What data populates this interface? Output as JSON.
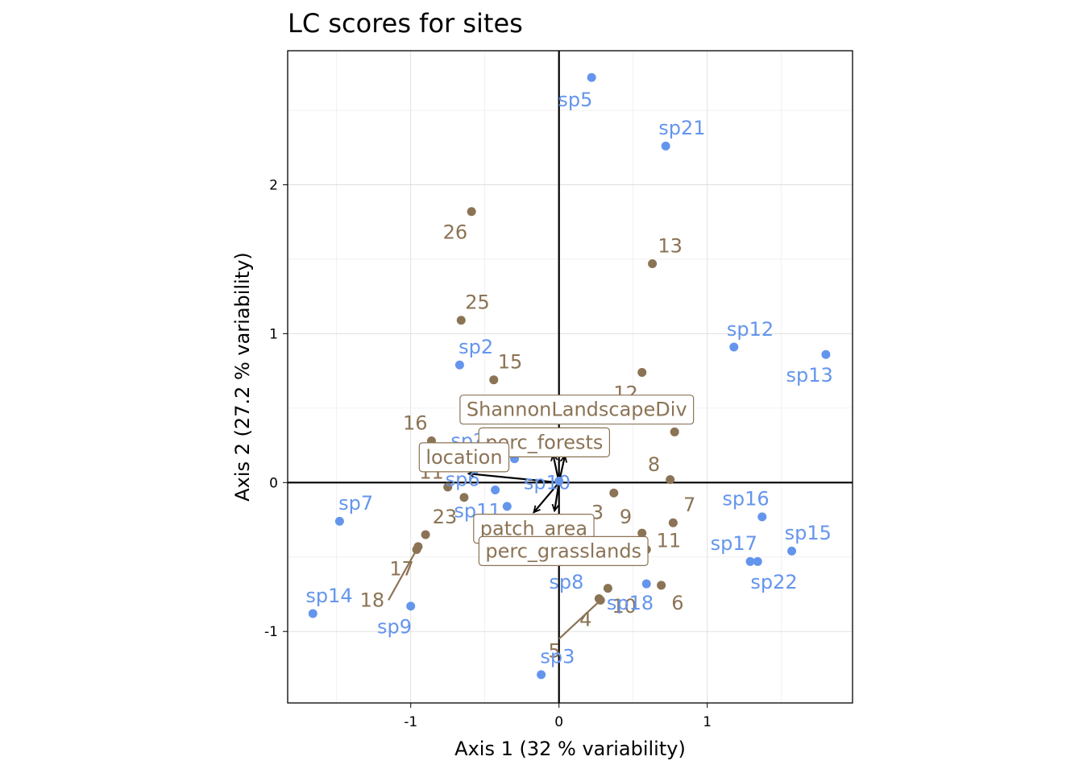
{
  "chart_data": {
    "type": "scatter",
    "title": "LC scores for sites",
    "xlabel": "Axis 1 (32 % variability)",
    "ylabel": "Axis 2 (27.2 % variability)",
    "xlim": [
      -1.83,
      1.98
    ],
    "ylim": [
      -1.48,
      2.9
    ],
    "x_ticks": [
      {
        "v": -1,
        "label": "-1"
      },
      {
        "v": 0,
        "label": "0"
      },
      {
        "v": 1,
        "label": "1"
      }
    ],
    "y_ticks": [
      {
        "v": -1,
        "label": "-1"
      },
      {
        "v": 0,
        "label": "0"
      },
      {
        "v": 1,
        "label": "1"
      },
      {
        "v": 2,
        "label": "2"
      }
    ],
    "grid": true,
    "colors": {
      "sites": "#8B7355",
      "species": "#6495ED",
      "axes_lines": "#000000",
      "grid": "#D9D9D9",
      "label_box_fill": "#FFFFFF",
      "label_box_border": "#8B7355"
    },
    "sites": [
      {
        "label": "26",
        "x": -0.59,
        "y": 1.82,
        "lx": -0.7,
        "ly": 1.68
      },
      {
        "label": "13",
        "x": 0.63,
        "y": 1.47,
        "lx": 0.75,
        "ly": 1.59
      },
      {
        "label": "25",
        "x": -0.66,
        "y": 1.09,
        "lx": -0.55,
        "ly": 1.21
      },
      {
        "label": "15",
        "x": -0.44,
        "y": 0.69,
        "lx": -0.33,
        "ly": 0.81
      },
      {
        "label": "12",
        "x": 0.56,
        "y": 0.74,
        "lx": 0.45,
        "ly": 0.6
      },
      {
        "label": "16",
        "x": -0.86,
        "y": 0.28,
        "lx": -0.97,
        "ly": 0.4
      },
      {
        "label": "",
        "x": 0.78,
        "y": 0.34
      },
      {
        "label": "8",
        "x": 0.75,
        "y": 0.02,
        "lx": 0.64,
        "ly": 0.12
      },
      {
        "label": "11",
        "x": -0.75,
        "y": -0.03,
        "lx": -0.86,
        "ly": 0.07
      },
      {
        "label": "",
        "x": -0.64,
        "y": -0.1
      },
      {
        "label": "7",
        "x": 0.77,
        "y": -0.27,
        "lx": 0.88,
        "ly": -0.15
      },
      {
        "label": "3",
        "x": 0.37,
        "y": -0.07,
        "lx": 0.26,
        "ly": -0.2
      },
      {
        "label": "9",
        "x": 0.56,
        "y": -0.34,
        "lx": 0.45,
        "ly": -0.23
      },
      {
        "label": "11",
        "x": 0.59,
        "y": -0.45,
        "lx": 0.74,
        "ly": -0.39
      },
      {
        "label": "23",
        "x": -0.9,
        "y": -0.35,
        "lx": -0.77,
        "ly": -0.23
      },
      {
        "label": "17",
        "x": -0.95,
        "y": -0.43,
        "lx": -1.06,
        "ly": -0.58
      },
      {
        "label": "18",
        "x": -0.96,
        "y": -0.45,
        "lx": -1.26,
        "ly": -0.79
      },
      {
        "label": "6",
        "x": 0.69,
        "y": -0.69,
        "lx": 0.8,
        "ly": -0.81
      },
      {
        "label": "10",
        "x": 0.33,
        "y": -0.71,
        "lx": 0.44,
        "ly": -0.83
      },
      {
        "label": "4",
        "x": 0.27,
        "y": -0.78,
        "lx": 0.18,
        "ly": -0.92
      },
      {
        "label": "5",
        "x": 0.28,
        "y": -0.79,
        "lx": -0.03,
        "ly": -1.13
      }
    ],
    "site_leader_lines": [
      {
        "x1": -0.96,
        "y1": -0.45,
        "x2": -1.15,
        "y2": -0.79
      },
      {
        "x1": 0.28,
        "y1": -0.79,
        "x2": 0.0,
        "y2": -1.05
      }
    ],
    "species": [
      {
        "label": "sp5",
        "x": 0.22,
        "y": 2.72,
        "lx": 0.11,
        "ly": 2.57
      },
      {
        "label": "sp21",
        "x": 0.72,
        "y": 2.26,
        "lx": 0.83,
        "ly": 2.38
      },
      {
        "label": "sp12",
        "x": 1.18,
        "y": 0.91,
        "lx": 1.29,
        "ly": 1.03
      },
      {
        "label": "sp13",
        "x": 1.8,
        "y": 0.86,
        "lx": 1.69,
        "ly": 0.72
      },
      {
        "label": "sp2",
        "x": -0.67,
        "y": 0.79,
        "lx": -0.56,
        "ly": 0.91
      },
      {
        "label": "sp?",
        "x": -0.3,
        "y": 0.16,
        "lx": -0.62,
        "ly": 0.28
      },
      {
        "label": "sp6",
        "x": -0.43,
        "y": -0.05,
        "lx": -0.65,
        "ly": 0.02
      },
      {
        "label": "sp10",
        "x": 0.0,
        "y": 0.01,
        "lx": -0.08,
        "ly": 0.0
      },
      {
        "label": "sp11",
        "x": -0.35,
        "y": -0.16,
        "lx": -0.55,
        "ly": -0.19
      },
      {
        "label": "sp7",
        "x": -1.48,
        "y": -0.26,
        "lx": -1.37,
        "ly": -0.14
      },
      {
        "label": "sp16",
        "x": 1.37,
        "y": -0.23,
        "lx": 1.26,
        "ly": -0.11
      },
      {
        "label": "sp15",
        "x": 1.57,
        "y": -0.46,
        "lx": 1.68,
        "ly": -0.34
      },
      {
        "label": "sp17",
        "x": 1.29,
        "y": -0.53,
        "lx": 1.18,
        "ly": -0.41
      },
      {
        "label": "sp22",
        "x": 1.34,
        "y": -0.53,
        "lx": 1.45,
        "ly": -0.67
      },
      {
        "label": "sp8",
        "x": 0.14,
        "y": -0.48,
        "lx": 0.05,
        "ly": -0.67
      },
      {
        "label": "sp18",
        "x": 0.59,
        "y": -0.68,
        "lx": 0.48,
        "ly": -0.81
      },
      {
        "label": "sp14",
        "x": -1.66,
        "y": -0.88,
        "lx": -1.55,
        "ly": -0.76
      },
      {
        "label": "sp9",
        "x": -1.0,
        "y": -0.83,
        "lx": -1.11,
        "ly": -0.97
      },
      {
        "label": "sp3",
        "x": -0.12,
        "y": -1.29,
        "lx": -0.01,
        "ly": -1.17
      }
    ],
    "env_vectors": [
      {
        "label": "ShannonLandscapeDiv",
        "x": 0.04,
        "y": 0.18,
        "lx": 0.12,
        "ly": 0.49
      },
      {
        "label": "perc_forests",
        "x": -0.04,
        "y": 0.19,
        "lx": -0.1,
        "ly": 0.27
      },
      {
        "label": "location",
        "x": -0.61,
        "y": 0.06,
        "lx": -0.64,
        "ly": 0.17
      },
      {
        "label": "patch_area",
        "x": -0.17,
        "y": -0.2,
        "lx": -0.17,
        "ly": -0.31
      },
      {
        "label": "perc_grasslands",
        "x": -0.03,
        "y": -0.19,
        "lx": 0.03,
        "ly": -0.46
      }
    ]
  }
}
